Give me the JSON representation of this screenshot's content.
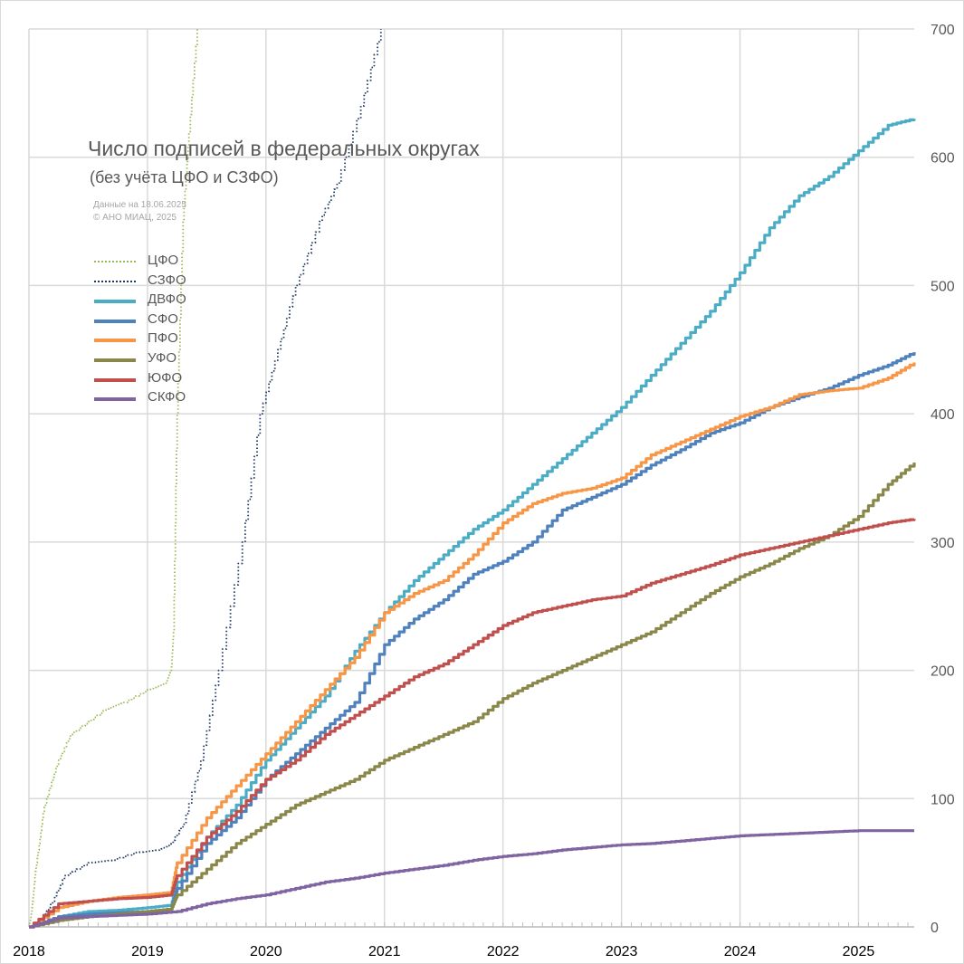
{
  "chart_data": {
    "type": "line",
    "title": "Число подписей в федеральных округах",
    "subtitle": "(без учёта ЦФО и СЗФО)",
    "notes": [
      "Данные на 18.06.2025",
      "© АНО МИАЦ, 2025"
    ],
    "x_ticks": [
      "2018",
      "2019",
      "2020",
      "2021",
      "2022",
      "2023",
      "2024",
      "2025"
    ],
    "y_ticks": [
      0,
      100,
      200,
      300,
      400,
      500,
      600,
      700
    ],
    "xlim": [
      2018.0,
      2025.47
    ],
    "ylim": [
      0,
      700
    ],
    "y_axis_side": "right",
    "grid": true,
    "legend_position": "upper-left",
    "series": [
      {
        "name": "ЦФО",
        "color": "#9bbb59",
        "style": "dotted",
        "points": [
          [
            2018.0,
            0
          ],
          [
            2018.02,
            10
          ],
          [
            2018.05,
            40
          ],
          [
            2018.08,
            60
          ],
          [
            2018.12,
            90
          ],
          [
            2018.18,
            110
          ],
          [
            2018.25,
            130
          ],
          [
            2018.35,
            150
          ],
          [
            2018.5,
            160
          ],
          [
            2018.65,
            170
          ],
          [
            2018.8,
            175
          ],
          [
            2019.0,
            185
          ],
          [
            2019.15,
            190
          ],
          [
            2019.2,
            200
          ],
          [
            2019.22,
            230
          ],
          [
            2019.25,
            400
          ],
          [
            2019.3,
            550
          ],
          [
            2019.35,
            620
          ],
          [
            2019.42,
            700
          ]
        ]
      },
      {
        "name": "СЗФО",
        "color": "#1f3864",
        "style": "dotted",
        "points": [
          [
            2018.0,
            0
          ],
          [
            2018.1,
            5
          ],
          [
            2018.2,
            20
          ],
          [
            2018.3,
            40
          ],
          [
            2018.5,
            50
          ],
          [
            2018.7,
            52
          ],
          [
            2018.9,
            58
          ],
          [
            2019.1,
            60
          ],
          [
            2019.2,
            65
          ],
          [
            2019.3,
            80
          ],
          [
            2019.45,
            130
          ],
          [
            2019.6,
            200
          ],
          [
            2019.8,
            300
          ],
          [
            2019.95,
            400
          ],
          [
            2020.1,
            450
          ],
          [
            2020.25,
            500
          ],
          [
            2020.45,
            550
          ],
          [
            2020.6,
            580
          ],
          [
            2020.8,
            640
          ],
          [
            2020.97,
            700
          ]
        ]
      },
      {
        "name": "ДВФО",
        "color": "#4bacc6",
        "style": "solid",
        "points": [
          [
            2018.0,
            0
          ],
          [
            2018.25,
            8
          ],
          [
            2018.5,
            12
          ],
          [
            2018.75,
            13
          ],
          [
            2019.0,
            15
          ],
          [
            2019.2,
            17
          ],
          [
            2019.25,
            35
          ],
          [
            2019.5,
            70
          ],
          [
            2019.75,
            95
          ],
          [
            2020.0,
            130
          ],
          [
            2020.25,
            155
          ],
          [
            2020.5,
            180
          ],
          [
            2020.75,
            215
          ],
          [
            2021.0,
            245
          ],
          [
            2021.25,
            270
          ],
          [
            2021.5,
            290
          ],
          [
            2021.75,
            310
          ],
          [
            2022.0,
            325
          ],
          [
            2022.25,
            345
          ],
          [
            2022.5,
            365
          ],
          [
            2022.75,
            385
          ],
          [
            2023.0,
            405
          ],
          [
            2023.25,
            430
          ],
          [
            2023.5,
            455
          ],
          [
            2023.75,
            480
          ],
          [
            2024.0,
            510
          ],
          [
            2024.25,
            545
          ],
          [
            2024.5,
            570
          ],
          [
            2024.75,
            585
          ],
          [
            2025.0,
            605
          ],
          [
            2025.25,
            625
          ],
          [
            2025.47,
            630
          ]
        ]
      },
      {
        "name": "СФО",
        "color": "#4f81bd",
        "style": "solid",
        "points": [
          [
            2018.0,
            0
          ],
          [
            2018.25,
            8
          ],
          [
            2018.5,
            10
          ],
          [
            2018.75,
            11
          ],
          [
            2019.0,
            12
          ],
          [
            2019.2,
            14
          ],
          [
            2019.25,
            30
          ],
          [
            2019.5,
            65
          ],
          [
            2019.75,
            85
          ],
          [
            2020.0,
            115
          ],
          [
            2020.25,
            135
          ],
          [
            2020.5,
            155
          ],
          [
            2020.75,
            175
          ],
          [
            2021.0,
            220
          ],
          [
            2021.25,
            240
          ],
          [
            2021.5,
            255
          ],
          [
            2021.75,
            275
          ],
          [
            2022.0,
            285
          ],
          [
            2022.25,
            300
          ],
          [
            2022.5,
            325
          ],
          [
            2022.75,
            335
          ],
          [
            2023.0,
            345
          ],
          [
            2023.25,
            360
          ],
          [
            2023.5,
            372
          ],
          [
            2023.75,
            385
          ],
          [
            2024.0,
            393
          ],
          [
            2024.25,
            405
          ],
          [
            2024.5,
            413
          ],
          [
            2024.75,
            420
          ],
          [
            2025.0,
            430
          ],
          [
            2025.25,
            438
          ],
          [
            2025.47,
            448
          ]
        ]
      },
      {
        "name": "ПФО",
        "color": "#f79646",
        "style": "solid",
        "points": [
          [
            2018.0,
            0
          ],
          [
            2018.25,
            15
          ],
          [
            2018.5,
            20
          ],
          [
            2018.75,
            23
          ],
          [
            2019.0,
            25
          ],
          [
            2019.2,
            27
          ],
          [
            2019.25,
            50
          ],
          [
            2019.5,
            85
          ],
          [
            2019.75,
            110
          ],
          [
            2020.0,
            135
          ],
          [
            2020.25,
            160
          ],
          [
            2020.5,
            185
          ],
          [
            2020.75,
            210
          ],
          [
            2021.0,
            245
          ],
          [
            2021.25,
            260
          ],
          [
            2021.5,
            270
          ],
          [
            2021.75,
            290
          ],
          [
            2022.0,
            315
          ],
          [
            2022.25,
            330
          ],
          [
            2022.5,
            338
          ],
          [
            2022.75,
            342
          ],
          [
            2023.0,
            350
          ],
          [
            2023.25,
            368
          ],
          [
            2023.5,
            378
          ],
          [
            2023.75,
            388
          ],
          [
            2024.0,
            398
          ],
          [
            2024.25,
            405
          ],
          [
            2024.5,
            415
          ],
          [
            2024.75,
            418
          ],
          [
            2025.0,
            420
          ],
          [
            2025.25,
            428
          ],
          [
            2025.47,
            440
          ]
        ]
      },
      {
        "name": "УФО",
        "color": "#8a874a",
        "style": "solid",
        "points": [
          [
            2018.0,
            0
          ],
          [
            2018.25,
            5
          ],
          [
            2018.5,
            8
          ],
          [
            2018.75,
            10
          ],
          [
            2019.0,
            12
          ],
          [
            2019.2,
            14
          ],
          [
            2019.25,
            25
          ],
          [
            2019.5,
            45
          ],
          [
            2019.75,
            65
          ],
          [
            2020.0,
            80
          ],
          [
            2020.25,
            95
          ],
          [
            2020.5,
            105
          ],
          [
            2020.75,
            115
          ],
          [
            2021.0,
            130
          ],
          [
            2021.25,
            140
          ],
          [
            2021.5,
            150
          ],
          [
            2021.75,
            160
          ],
          [
            2022.0,
            178
          ],
          [
            2022.25,
            190
          ],
          [
            2022.5,
            200
          ],
          [
            2022.75,
            210
          ],
          [
            2023.0,
            220
          ],
          [
            2023.25,
            230
          ],
          [
            2023.5,
            245
          ],
          [
            2023.75,
            260
          ],
          [
            2024.0,
            273
          ],
          [
            2024.25,
            283
          ],
          [
            2024.5,
            295
          ],
          [
            2024.75,
            305
          ],
          [
            2025.0,
            320
          ],
          [
            2025.25,
            345
          ],
          [
            2025.47,
            362
          ]
        ]
      },
      {
        "name": "ЮФО",
        "color": "#c0504d",
        "style": "solid",
        "points": [
          [
            2018.0,
            0
          ],
          [
            2018.25,
            18
          ],
          [
            2018.5,
            20
          ],
          [
            2018.75,
            22
          ],
          [
            2019.0,
            23
          ],
          [
            2019.2,
            25
          ],
          [
            2019.25,
            40
          ],
          [
            2019.5,
            70
          ],
          [
            2019.75,
            90
          ],
          [
            2020.0,
            115
          ],
          [
            2020.25,
            130
          ],
          [
            2020.5,
            150
          ],
          [
            2020.75,
            165
          ],
          [
            2021.0,
            180
          ],
          [
            2021.25,
            195
          ],
          [
            2021.5,
            205
          ],
          [
            2021.75,
            220
          ],
          [
            2022.0,
            235
          ],
          [
            2022.25,
            245
          ],
          [
            2022.5,
            250
          ],
          [
            2022.75,
            255
          ],
          [
            2023.0,
            258
          ],
          [
            2023.25,
            268
          ],
          [
            2023.5,
            275
          ],
          [
            2023.75,
            282
          ],
          [
            2024.0,
            290
          ],
          [
            2024.25,
            295
          ],
          [
            2024.5,
            300
          ],
          [
            2024.75,
            305
          ],
          [
            2025.0,
            310
          ],
          [
            2025.25,
            315
          ],
          [
            2025.47,
            318
          ]
        ]
      },
      {
        "name": "СКФО",
        "color": "#8064a2",
        "style": "solid",
        "points": [
          [
            2018.0,
            0
          ],
          [
            2018.25,
            7
          ],
          [
            2018.5,
            8
          ],
          [
            2018.75,
            9
          ],
          [
            2019.0,
            10
          ],
          [
            2019.25,
            12
          ],
          [
            2019.5,
            18
          ],
          [
            2019.75,
            22
          ],
          [
            2020.0,
            25
          ],
          [
            2020.25,
            30
          ],
          [
            2020.5,
            35
          ],
          [
            2020.75,
            38
          ],
          [
            2021.0,
            42
          ],
          [
            2021.25,
            45
          ],
          [
            2021.5,
            48
          ],
          [
            2021.75,
            52
          ],
          [
            2022.0,
            55
          ],
          [
            2022.25,
            57
          ],
          [
            2022.5,
            60
          ],
          [
            2022.75,
            62
          ],
          [
            2023.0,
            64
          ],
          [
            2023.25,
            65
          ],
          [
            2023.5,
            67
          ],
          [
            2023.75,
            69
          ],
          [
            2024.0,
            71
          ],
          [
            2024.25,
            72
          ],
          [
            2024.5,
            73
          ],
          [
            2024.75,
            74
          ],
          [
            2025.0,
            75
          ],
          [
            2025.25,
            75
          ],
          [
            2025.47,
            75
          ]
        ]
      }
    ]
  }
}
